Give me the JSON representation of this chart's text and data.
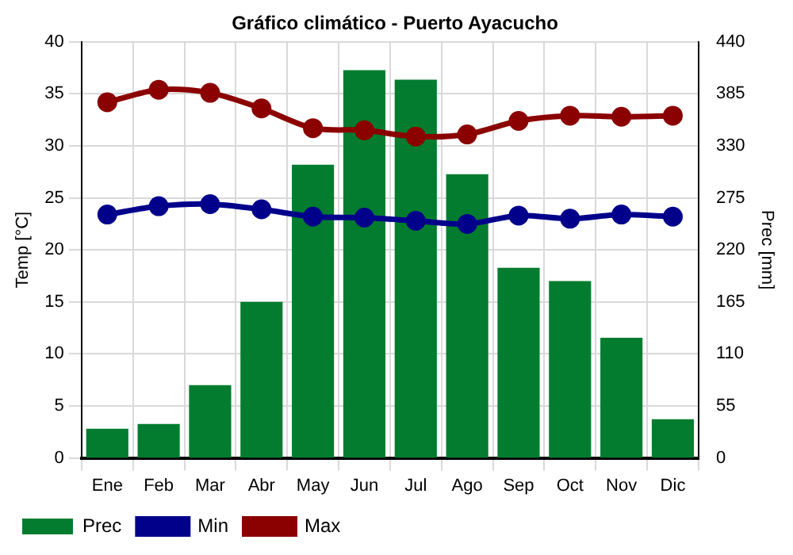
{
  "chart_data": {
    "type": "bar",
    "title": "Gráfico climático - Puerto Ayacucho",
    "ylabel": "Temp [°C]",
    "y2label": "Prec [mm]",
    "categories": [
      "Ene",
      "Feb",
      "Mar",
      "Abr",
      "May",
      "Jun",
      "Jul",
      "Ago",
      "Sep",
      "Oct",
      "Nov",
      "Dic"
    ],
    "series": [
      {
        "name": "Prec",
        "axis": "y2",
        "color": "#037c2f",
        "values": [
          31,
          36,
          77,
          165,
          310,
          410,
          400,
          300,
          201,
          187,
          127,
          41
        ]
      },
      {
        "name": "Min",
        "type": "line",
        "color": "#00008b",
        "values": [
          23.4,
          24.2,
          24.4,
          23.9,
          23.2,
          23.1,
          22.8,
          22.5,
          23.3,
          23.0,
          23.4,
          23.2
        ]
      },
      {
        "name": "Max",
        "type": "line",
        "color": "#8b0000",
        "values": [
          34.2,
          35.4,
          35.1,
          33.6,
          31.7,
          31.5,
          30.9,
          31.1,
          32.4,
          32.9,
          32.8,
          32.9
        ]
      }
    ],
    "ylim": [
      0,
      40
    ],
    "yticks": [
      0,
      5,
      10,
      15,
      20,
      25,
      30,
      35,
      40
    ],
    "y2lim": [
      0,
      440
    ],
    "y2ticks": [
      0,
      55,
      110,
      165,
      220,
      275,
      330,
      385,
      440
    ],
    "grid": true,
    "legend": "bottom left",
    "marker": "circle",
    "line_style": "solid"
  }
}
